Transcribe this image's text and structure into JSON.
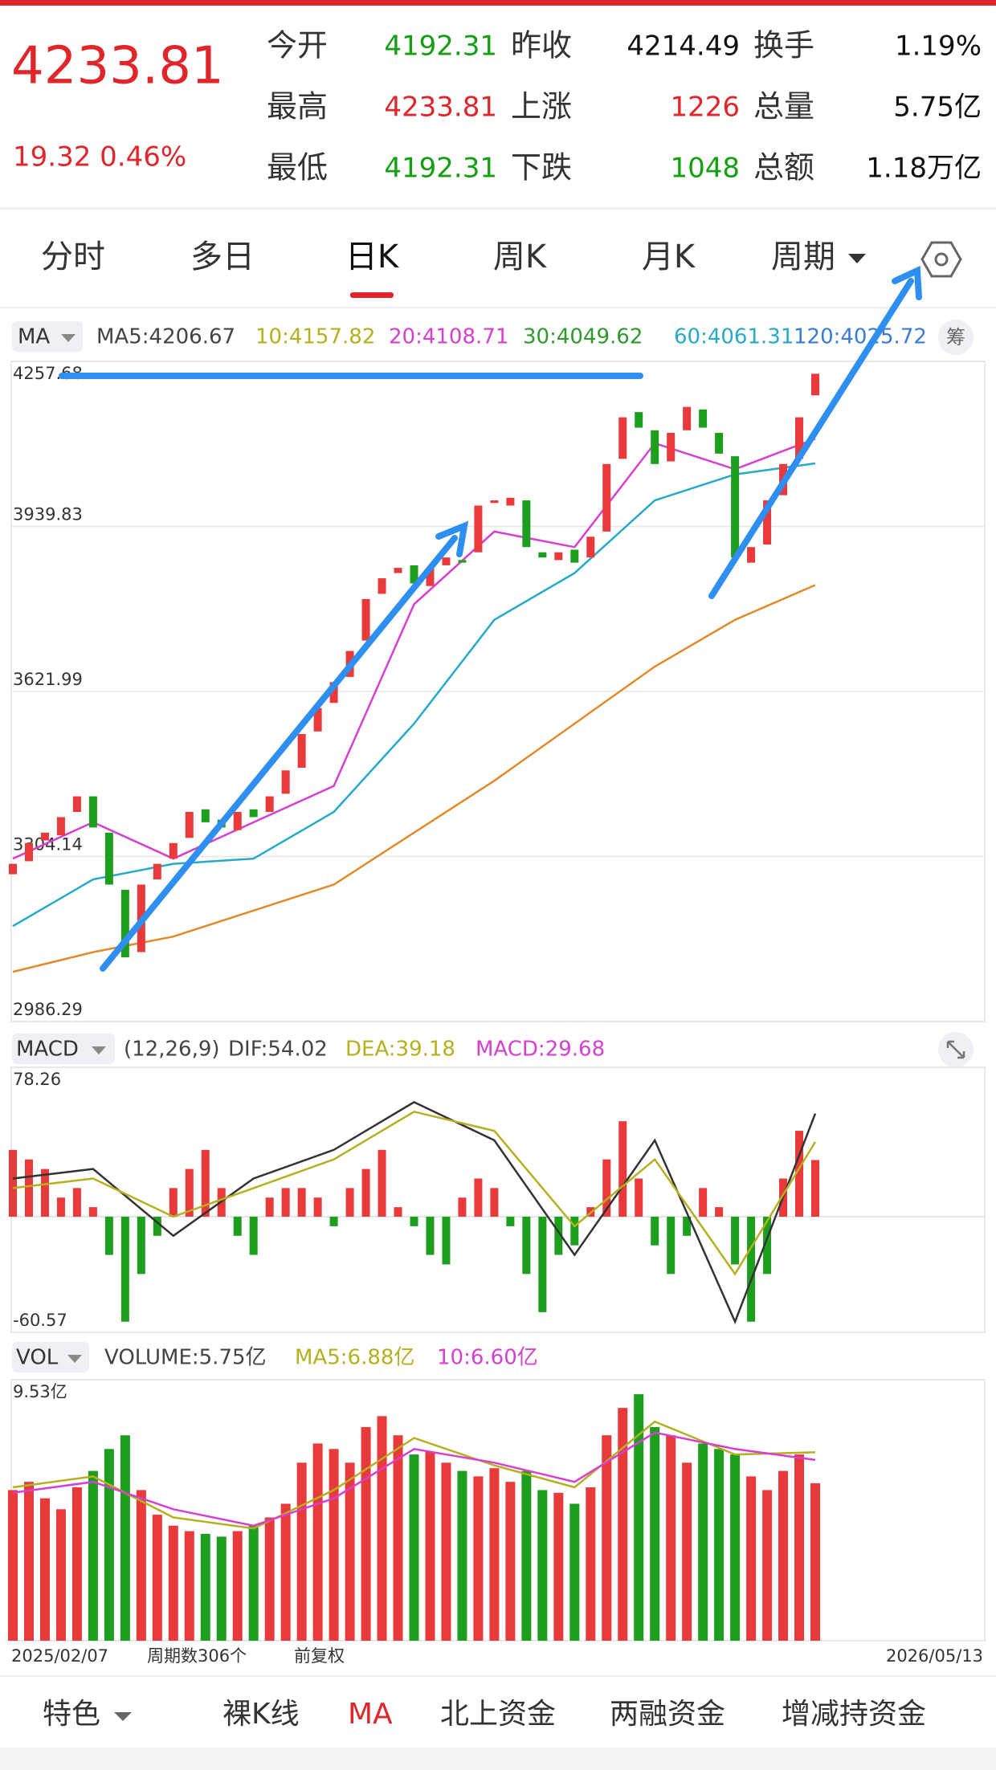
{
  "quote": {
    "price": "4233.81",
    "change": "19.32 0.46%",
    "stats": [
      [
        {
          "label": "今开",
          "value": "4192.31"
        },
        {
          "label": "昨收",
          "value": "4214.49"
        },
        {
          "label": "换手",
          "value": "1.19%"
        }
      ],
      [
        {
          "label": "最高",
          "value": "4233.81"
        },
        {
          "label": "上涨",
          "value": "1226"
        },
        {
          "label": "总量",
          "value": "5.75亿"
        }
      ],
      [
        {
          "label": "最低",
          "value": "4192.31"
        },
        {
          "label": "下跌",
          "value": "1048"
        },
        {
          "label": "总额",
          "value": "1.18万亿"
        }
      ]
    ]
  },
  "tabs": [
    "分时",
    "多日",
    "日K",
    "周K",
    "月K",
    "周期"
  ],
  "ma_legend": {
    "name": "MA",
    "items": [
      "MA5:4206.67",
      "10:4157.82",
      "20:4108.71",
      "30:4049.62",
      "60:4061.31",
      "120:4025.72"
    ],
    "chip": "筹"
  },
  "kline": {
    "ylim": [
      2986.29,
      4257.68
    ],
    "yticks": [
      4257.68,
      3939.83,
      3621.99,
      3304.14,
      2986.29
    ],
    "open": [
      3270,
      3295,
      3335,
      3345,
      3390,
      3420,
      3350,
      3240,
      3120,
      3260,
      3300,
      3340,
      3395,
      3375,
      3355,
      3395,
      3390,
      3425,
      3475,
      3545,
      3600,
      3650,
      3720,
      3810,
      3850,
      3865,
      3825,
      3865,
      3875,
      3890,
      3985,
      3980,
      3990,
      3890,
      3875,
      3895,
      3880,
      3930,
      4070,
      4160,
      4125,
      4065,
      4125,
      4165,
      4120,
      4075,
      3870,
      3905,
      4000,
      4070,
      4192.31
    ],
    "close": [
      3290,
      3330,
      3350,
      3380,
      3420,
      3360,
      3250,
      3110,
      3250,
      3290,
      3330,
      3390,
      3370,
      3360,
      3390,
      3380,
      3420,
      3470,
      3540,
      3590,
      3640,
      3700,
      3800,
      3840,
      3860,
      3830,
      3860,
      3880,
      3870,
      3980,
      3990,
      3995,
      3900,
      3880,
      3890,
      3870,
      3920,
      4060,
      4150,
      4130,
      4060,
      4120,
      4170,
      4130,
      4080,
      3880,
      3900,
      3990,
      4060,
      4150,
      4233.81
    ],
    "lines": [
      {
        "color": "#d63fd0",
        "values": [
          3300,
          3370,
          3300,
          3370,
          3440,
          3790,
          3930,
          3900,
          4100,
          4050,
          4108.71
        ]
      },
      {
        "color": "#27a9c9",
        "values": [
          3170,
          3260,
          3290,
          3300,
          3390,
          3560,
          3760,
          3850,
          3990,
          4040,
          4061.31
        ]
      },
      {
        "color": "#e08a2a",
        "values": [
          3082,
          3120,
          3150,
          3200,
          3250,
          3350,
          3450,
          3560,
          3670,
          3760,
          3827
        ]
      }
    ]
  },
  "macd": {
    "name": "MACD",
    "params": "(12,26,9)",
    "items": [
      "DIF:54.02",
      "DEA:39.18",
      "MACD:29.68"
    ],
    "ylim": [
      -60.57,
      78.26
    ],
    "yticks": [
      78.26,
      -60.57
    ],
    "values": [
      35,
      30,
      25,
      10,
      15,
      5,
      -20,
      -55,
      -30,
      -10,
      15,
      25,
      35,
      15,
      -10,
      -20,
      10,
      15,
      15,
      10,
      -5,
      15,
      25,
      35,
      5,
      -5,
      -20,
      -25,
      10,
      20,
      15,
      -5,
      -30,
      -50,
      -20,
      -15,
      5,
      30,
      50,
      20,
      -15,
      -30,
      -10,
      15,
      5,
      -25,
      -55,
      -30,
      20,
      45,
      29.68
    ],
    "lines": [
      {
        "color": "#333333",
        "values": [
          20,
          25,
          -10,
          20,
          35,
          60,
          40,
          -20,
          40,
          -55,
          54.02
        ]
      },
      {
        "color": "#b5b020",
        "values": [
          15,
          20,
          0,
          15,
          30,
          55,
          45,
          -5,
          30,
          -30,
          39.18
        ]
      }
    ]
  },
  "vol": {
    "name": "VOL",
    "items": [
      "VOLUME:5.75亿",
      "MA5:6.88亿",
      "10:6.60亿"
    ],
    "ylim": [
      0,
      9.53
    ],
    "yticks": [
      {
        "value": 9.53,
        "label": "9.53亿"
      }
    ],
    "values": [
      5.5,
      5.8,
      5.2,
      4.8,
      5.6,
      6.2,
      7.0,
      7.5,
      5.5,
      4.6,
      4.2,
      4.0,
      3.9,
      3.8,
      4.0,
      4.2,
      4.5,
      5.0,
      6.5,
      7.2,
      7.0,
      6.5,
      7.8,
      8.2,
      7.5,
      6.8,
      6.9,
      6.5,
      6.2,
      6.0,
      6.3,
      5.8,
      6.2,
      5.5,
      5.4,
      5.0,
      5.6,
      7.5,
      8.5,
      9.0,
      7.8,
      7.5,
      6.5,
      7.2,
      7.0,
      6.8,
      6.0,
      5.5,
      6.2,
      6.8,
      5.75
    ],
    "lines": [
      {
        "color": "#b5b020",
        "values": [
          5.6,
          6.0,
          4.5,
          4.1,
          5.5,
          7.4,
          6.4,
          5.6,
          8.0,
          6.8,
          6.88
        ]
      },
      {
        "color": "#d63fd0",
        "values": [
          5.4,
          5.8,
          4.8,
          4.2,
          5.2,
          7.0,
          6.5,
          5.8,
          7.6,
          7.0,
          6.6
        ]
      }
    ]
  },
  "axis": {
    "start": "2025/02/07",
    "count": "周期数306个",
    "adjust": "前复权",
    "end": "2026/05/13"
  },
  "bottom_tabs": [
    "特色",
    "裸K线",
    "MA",
    "北上资金",
    "两融资金",
    "增减持资金"
  ]
}
